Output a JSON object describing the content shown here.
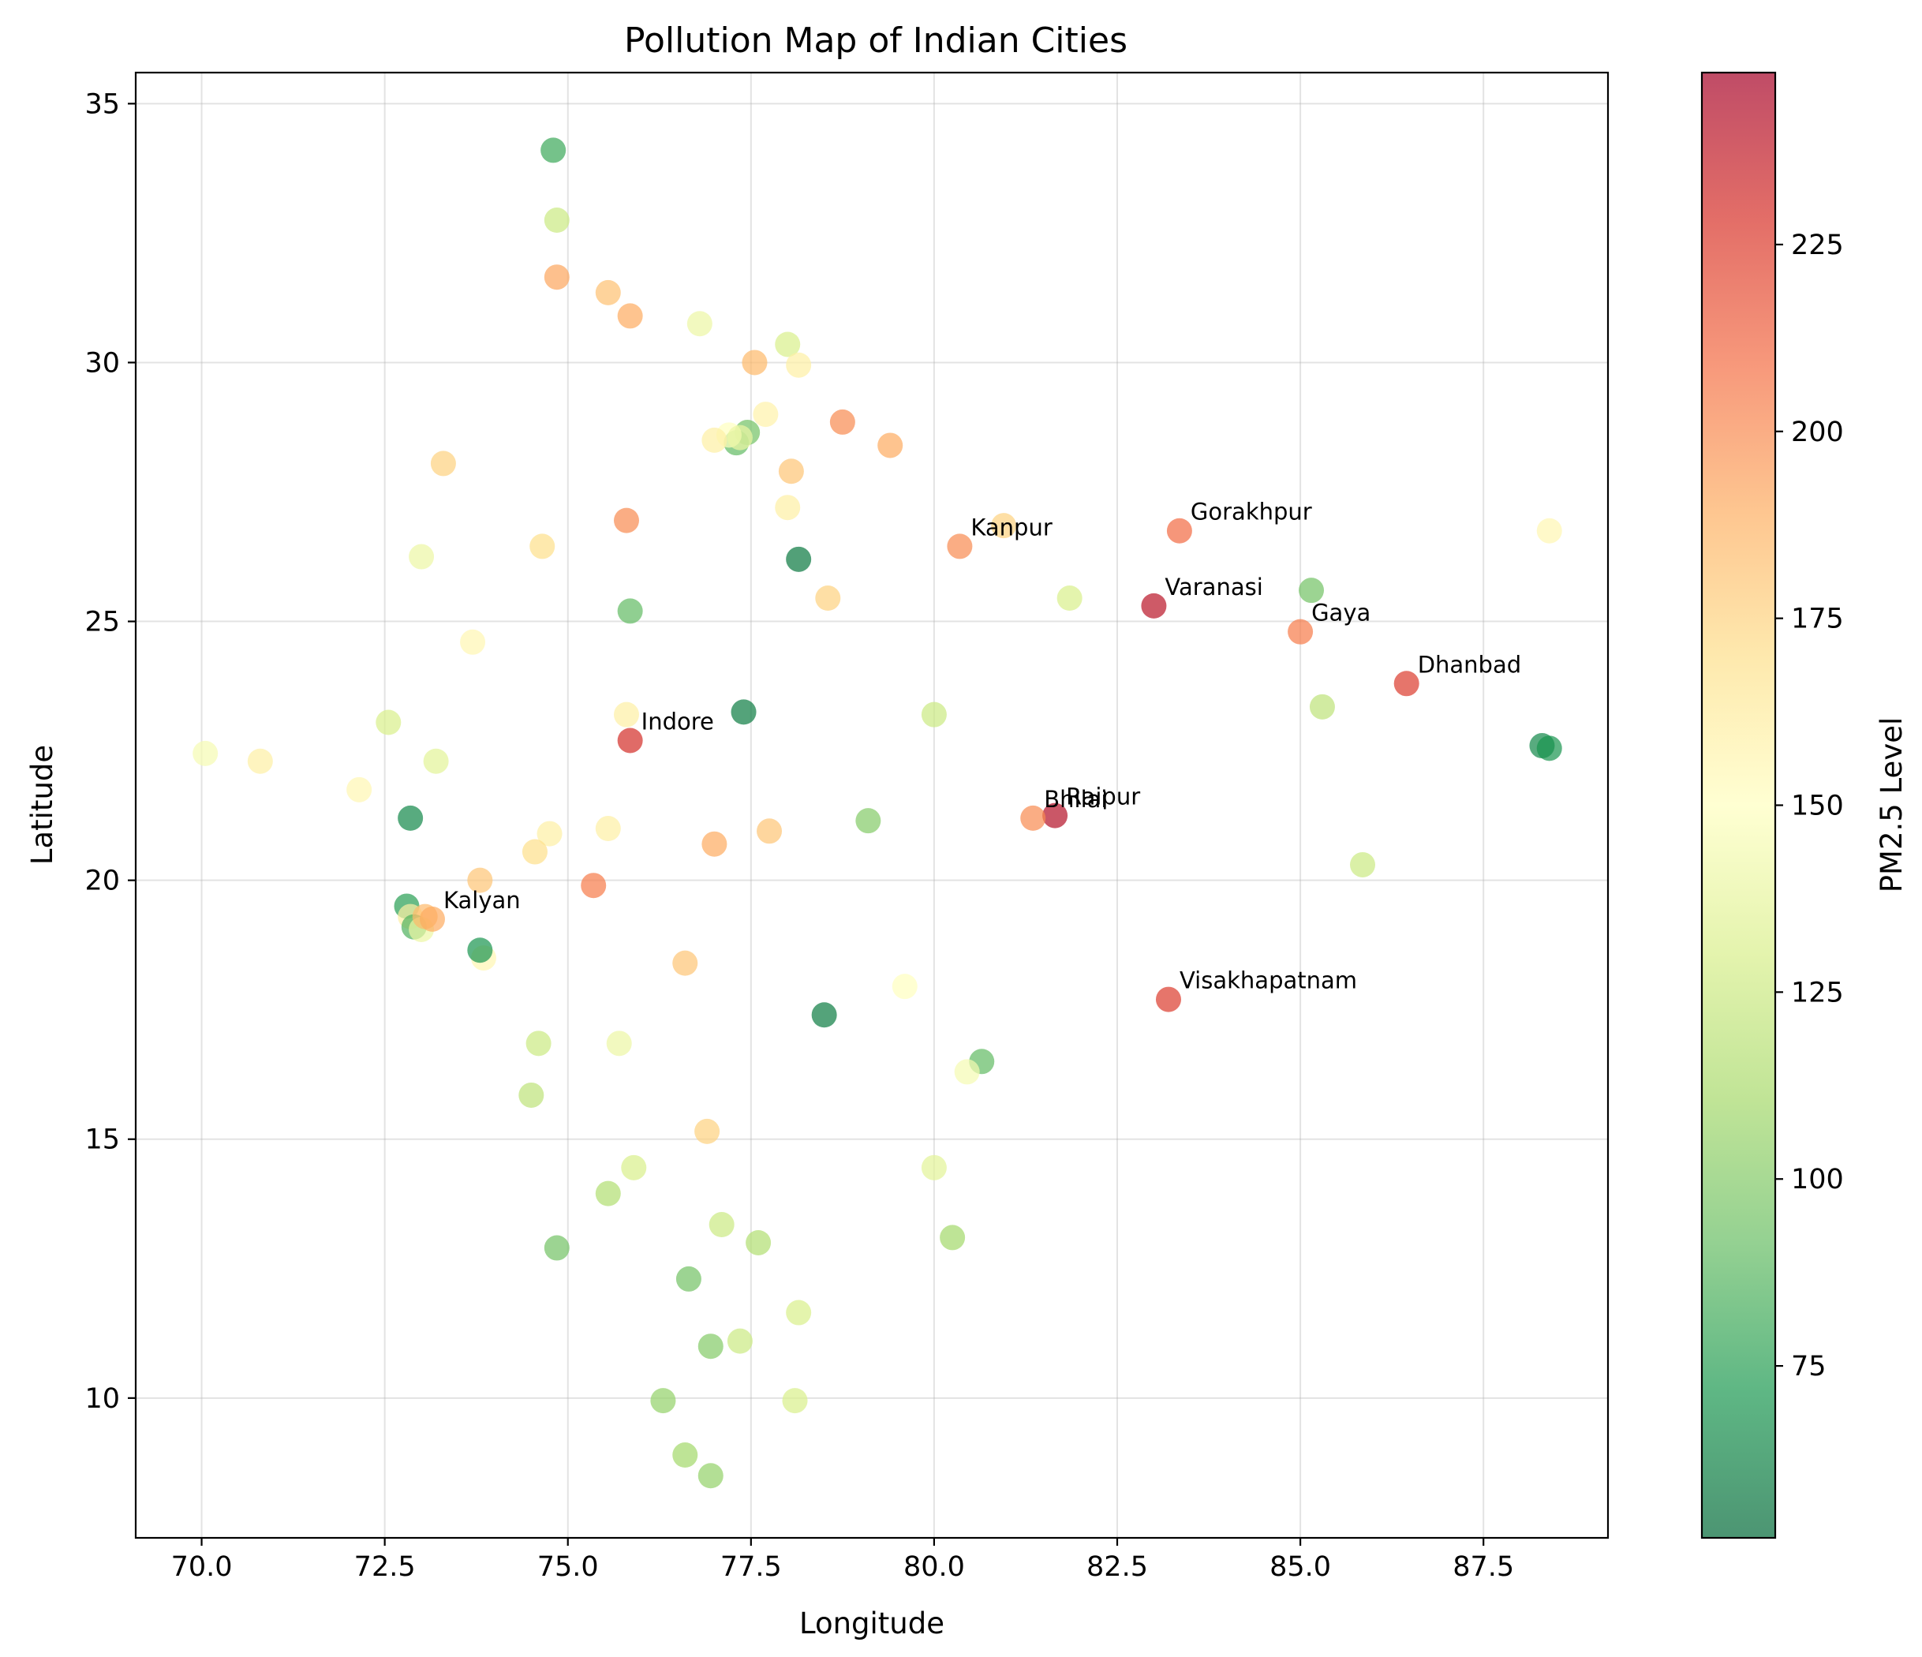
{
  "chart_data": {
    "type": "scatter",
    "title": "Pollution Map of Indian Cities",
    "xlabel": "Longitude",
    "ylabel": "Latitude",
    "xlim": [
      69.1,
      89.2
    ],
    "ylim": [
      7.3,
      35.6
    ],
    "xticks": [
      70.0,
      72.5,
      75.0,
      77.5,
      80.0,
      82.5,
      85.0,
      87.5
    ],
    "xtick_labels": [
      "70.0",
      "72.5",
      "75.0",
      "77.5",
      "80.0",
      "82.5",
      "85.0",
      "87.5"
    ],
    "yticks": [
      10,
      15,
      20,
      25,
      30,
      35
    ],
    "ytick_labels": [
      "10",
      "15",
      "20",
      "25",
      "30",
      "35"
    ],
    "grid": true,
    "colormap": "RdYlGn_r",
    "colorbar": {
      "label": "PM2.5 Level",
      "range": [
        52,
        248
      ],
      "ticks": [
        75,
        100,
        125,
        150,
        175,
        200,
        225
      ],
      "tick_labels": [
        "75",
        "100",
        "125",
        "150",
        "175",
        "200",
        "225"
      ]
    },
    "points": [
      {
        "x": 74.8,
        "y": 34.1,
        "v": 80
      },
      {
        "x": 74.85,
        "y": 32.75,
        "v": 125
      },
      {
        "x": 74.85,
        "y": 31.65,
        "v": 192
      },
      {
        "x": 75.55,
        "y": 31.35,
        "v": 182
      },
      {
        "x": 75.85,
        "y": 30.9,
        "v": 190
      },
      {
        "x": 76.8,
        "y": 30.75,
        "v": 140
      },
      {
        "x": 78.0,
        "y": 30.35,
        "v": 130
      },
      {
        "x": 77.55,
        "y": 30.0,
        "v": 185
      },
      {
        "x": 78.15,
        "y": 29.95,
        "v": 160
      },
      {
        "x": 77.7,
        "y": 29.0,
        "v": 158
      },
      {
        "x": 78.75,
        "y": 28.85,
        "v": 200
      },
      {
        "x": 79.4,
        "y": 28.4,
        "v": 190
      },
      {
        "x": 77.45,
        "y": 28.65,
        "v": 95
      },
      {
        "x": 77.3,
        "y": 28.45,
        "v": 90
      },
      {
        "x": 77.2,
        "y": 28.6,
        "v": 150
      },
      {
        "x": 77.35,
        "y": 28.55,
        "v": 140
      },
      {
        "x": 77.0,
        "y": 28.5,
        "v": 160
      },
      {
        "x": 73.3,
        "y": 28.05,
        "v": 175
      },
      {
        "x": 78.05,
        "y": 27.9,
        "v": 180
      },
      {
        "x": 78.0,
        "y": 27.2,
        "v": 160
      },
      {
        "x": 75.8,
        "y": 26.95,
        "v": 200
      },
      {
        "x": 80.95,
        "y": 26.85,
        "v": 175
      },
      {
        "x": 80.35,
        "y": 26.45,
        "v": 200,
        "label": "Kanpur"
      },
      {
        "x": 83.35,
        "y": 26.75,
        "v": 210,
        "label": "Gorakhpur"
      },
      {
        "x": 88.4,
        "y": 26.75,
        "v": 155
      },
      {
        "x": 74.65,
        "y": 26.45,
        "v": 170
      },
      {
        "x": 73.0,
        "y": 26.25,
        "v": 140
      },
      {
        "x": 78.15,
        "y": 26.2,
        "v": 58
      },
      {
        "x": 85.15,
        "y": 25.6,
        "v": 95
      },
      {
        "x": 81.85,
        "y": 25.45,
        "v": 130
      },
      {
        "x": 78.55,
        "y": 25.45,
        "v": 175
      },
      {
        "x": 75.85,
        "y": 25.2,
        "v": 90
      },
      {
        "x": 83.0,
        "y": 25.3,
        "v": 240,
        "label": "Varanasi"
      },
      {
        "x": 85.0,
        "y": 24.8,
        "v": 205,
        "label": "Gaya"
      },
      {
        "x": 73.7,
        "y": 24.6,
        "v": 155
      },
      {
        "x": 86.45,
        "y": 23.8,
        "v": 225,
        "label": "Dhanbad"
      },
      {
        "x": 85.3,
        "y": 23.35,
        "v": 120
      },
      {
        "x": 77.4,
        "y": 23.25,
        "v": 60
      },
      {
        "x": 80.0,
        "y": 23.2,
        "v": 125
      },
      {
        "x": 75.8,
        "y": 23.2,
        "v": 160
      },
      {
        "x": 72.55,
        "y": 23.05,
        "v": 130
      },
      {
        "x": 75.85,
        "y": 22.7,
        "v": 230,
        "label": "Indore"
      },
      {
        "x": 70.05,
        "y": 22.45,
        "v": 145
      },
      {
        "x": 70.8,
        "y": 22.3,
        "v": 160
      },
      {
        "x": 73.2,
        "y": 22.3,
        "v": 135
      },
      {
        "x": 88.3,
        "y": 22.6,
        "v": 65
      },
      {
        "x": 88.4,
        "y": 22.55,
        "v": 70
      },
      {
        "x": 72.15,
        "y": 21.75,
        "v": 155
      },
      {
        "x": 72.85,
        "y": 21.2,
        "v": 65
      },
      {
        "x": 79.1,
        "y": 21.15,
        "v": 100
      },
      {
        "x": 81.65,
        "y": 21.25,
        "v": 242,
        "label": "Raipur"
      },
      {
        "x": 81.35,
        "y": 21.2,
        "v": 200,
        "label": "Bhilai"
      },
      {
        "x": 75.55,
        "y": 21.0,
        "v": 160
      },
      {
        "x": 77.75,
        "y": 20.95,
        "v": 180
      },
      {
        "x": 74.75,
        "y": 20.9,
        "v": 160
      },
      {
        "x": 77.0,
        "y": 20.7,
        "v": 190
      },
      {
        "x": 74.55,
        "y": 20.55,
        "v": 170
      },
      {
        "x": 85.85,
        "y": 20.3,
        "v": 125
      },
      {
        "x": 73.8,
        "y": 20.0,
        "v": 180
      },
      {
        "x": 75.35,
        "y": 19.9,
        "v": 205
      },
      {
        "x": 72.8,
        "y": 19.5,
        "v": 75
      },
      {
        "x": 72.85,
        "y": 19.3,
        "v": 160
      },
      {
        "x": 72.9,
        "y": 19.1,
        "v": 85
      },
      {
        "x": 73.0,
        "y": 19.05,
        "v": 140
      },
      {
        "x": 73.05,
        "y": 19.3,
        "v": 185
      },
      {
        "x": 73.15,
        "y": 19.25,
        "v": 190,
        "label": "Kalyan"
      },
      {
        "x": 73.85,
        "y": 18.5,
        "v": 155
      },
      {
        "x": 73.8,
        "y": 18.65,
        "v": 70
      },
      {
        "x": 76.6,
        "y": 18.4,
        "v": 180
      },
      {
        "x": 79.6,
        "y": 17.95,
        "v": 150
      },
      {
        "x": 83.2,
        "y": 17.7,
        "v": 225,
        "label": "Visakhapatnam"
      },
      {
        "x": 78.5,
        "y": 17.4,
        "v": 60
      },
      {
        "x": 74.6,
        "y": 16.85,
        "v": 125
      },
      {
        "x": 75.7,
        "y": 16.85,
        "v": 140
      },
      {
        "x": 80.65,
        "y": 16.5,
        "v": 90
      },
      {
        "x": 80.45,
        "y": 16.3,
        "v": 145
      },
      {
        "x": 74.5,
        "y": 15.85,
        "v": 120
      },
      {
        "x": 76.9,
        "y": 15.15,
        "v": 175
      },
      {
        "x": 75.9,
        "y": 14.45,
        "v": 130
      },
      {
        "x": 80.0,
        "y": 14.45,
        "v": 135
      },
      {
        "x": 75.55,
        "y": 13.95,
        "v": 115
      },
      {
        "x": 77.1,
        "y": 13.35,
        "v": 125
      },
      {
        "x": 77.6,
        "y": 13.0,
        "v": 115
      },
      {
        "x": 80.25,
        "y": 13.1,
        "v": 110
      },
      {
        "x": 74.85,
        "y": 12.9,
        "v": 95
      },
      {
        "x": 76.65,
        "y": 12.3,
        "v": 95
      },
      {
        "x": 78.15,
        "y": 11.65,
        "v": 130
      },
      {
        "x": 77.35,
        "y": 11.1,
        "v": 125
      },
      {
        "x": 76.95,
        "y": 11.0,
        "v": 100
      },
      {
        "x": 76.3,
        "y": 9.95,
        "v": 105
      },
      {
        "x": 78.1,
        "y": 9.95,
        "v": 130
      },
      {
        "x": 76.6,
        "y": 8.9,
        "v": 110
      },
      {
        "x": 76.95,
        "y": 8.5,
        "v": 105
      }
    ]
  }
}
